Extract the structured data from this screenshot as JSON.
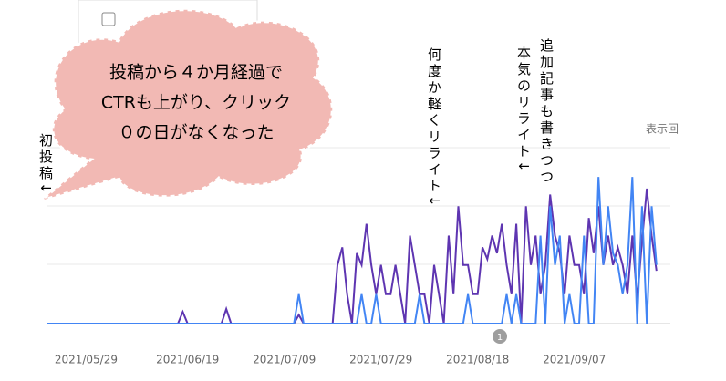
{
  "chart_data": {
    "type": "line",
    "categories": [
      null,
      null,
      null,
      null,
      null,
      null,
      null,
      null,
      "2021/05/29",
      null,
      null,
      null,
      null,
      null,
      null,
      null,
      null,
      null,
      null,
      null,
      null,
      null,
      null,
      null,
      null,
      null,
      null,
      null,
      null,
      "2021/06/19",
      null,
      null,
      null,
      null,
      null,
      null,
      null,
      null,
      null,
      null,
      null,
      null,
      null,
      null,
      null,
      null,
      null,
      null,
      null,
      "2021/07/09",
      null,
      null,
      null,
      null,
      null,
      null,
      null,
      null,
      null,
      null,
      null,
      null,
      null,
      null,
      null,
      null,
      null,
      null,
      null,
      "2021/07/29",
      null,
      null,
      null,
      null,
      null,
      null,
      null,
      null,
      null,
      null,
      null,
      null,
      null,
      null,
      null,
      null,
      null,
      null,
      null,
      "2021/08/18",
      null,
      null,
      null,
      null,
      null,
      null,
      null,
      null,
      null,
      null,
      null,
      null,
      null,
      null,
      null,
      null,
      null,
      null,
      null,
      "2021/09/07",
      null,
      null,
      null,
      null,
      null,
      null,
      null,
      null,
      null,
      null,
      null,
      null,
      null,
      null,
      null,
      null,
      null
    ],
    "series": [
      {
        "color": "#5e35b1",
        "values": [
          0,
          0,
          0,
          0,
          0,
          0,
          0,
          0,
          0,
          0,
          0,
          0,
          0,
          0,
          0,
          0,
          0,
          0,
          0,
          0,
          0,
          0,
          0,
          0,
          0,
          0,
          0,
          0,
          0.2,
          0,
          0,
          0,
          0,
          0,
          0,
          0,
          0,
          0.25,
          0,
          0,
          0,
          0,
          0,
          0,
          0,
          0,
          0,
          0,
          0,
          0,
          0,
          0,
          0.15,
          0,
          0,
          0,
          0,
          0,
          0,
          0,
          1,
          1.3,
          0.5,
          0,
          1.2,
          1,
          1.7,
          1,
          0.5,
          1,
          0.5,
          0.5,
          1,
          0.5,
          0,
          1.5,
          1,
          0.5,
          0.5,
          0,
          1,
          0.5,
          0,
          1.5,
          0.5,
          2,
          1,
          1,
          0.5,
          0.5,
          1.3,
          1.1,
          1.5,
          1.2,
          1.7,
          1,
          0.5,
          1.7,
          0,
          2,
          1,
          1.5,
          0.5,
          1,
          2.2,
          1.5,
          1.2,
          0.5,
          1.5,
          1,
          1,
          0.5,
          1.8,
          1.2,
          2,
          1,
          1.5,
          1,
          1.3,
          1,
          0.5,
          1.5,
          0.4,
          1.4,
          2.3,
          1.5,
          0.9
        ]
      },
      {
        "color": "#4285f4",
        "values": [
          0,
          0,
          0,
          0,
          0,
          0,
          0,
          0,
          0,
          0,
          0,
          0,
          0,
          0,
          0,
          0,
          0,
          0,
          0,
          0,
          0,
          0,
          0,
          0,
          0,
          0,
          0,
          0,
          0,
          0,
          0,
          0,
          0,
          0,
          0,
          0,
          0,
          0,
          0,
          0,
          0,
          0,
          0,
          0,
          0,
          0,
          0,
          0,
          0,
          0,
          0,
          0,
          0.5,
          0,
          0,
          0,
          0,
          0,
          0,
          0,
          0,
          0,
          0,
          0,
          0,
          0.5,
          0,
          0,
          0.5,
          0,
          0,
          0,
          0,
          0,
          0,
          0,
          0,
          0.5,
          0,
          0,
          0,
          0,
          0,
          0,
          0,
          0,
          0,
          0.5,
          0,
          0,
          0,
          0,
          0,
          0,
          0,
          0.5,
          0,
          0.5,
          0,
          0,
          0,
          0,
          1.5,
          0,
          2,
          1,
          1.5,
          0,
          0.5,
          0,
          0,
          1.5,
          0,
          0,
          2.5,
          1,
          2,
          1.2,
          1,
          0.5,
          1,
          2.5,
          0,
          2,
          0,
          2,
          1
        ]
      }
    ],
    "ylim": [
      0,
      3
    ],
    "axis_title": "表示回",
    "marker": "1",
    "annotations": [
      "初投稿↓",
      "何度か軽くリライト↓",
      "追加記事も書きつつ",
      "本気のリライト↓"
    ],
    "callout": [
      "投稿から４か月経過で",
      "CTRも上がり、クリック",
      "０の日がなくなった"
    ]
  }
}
